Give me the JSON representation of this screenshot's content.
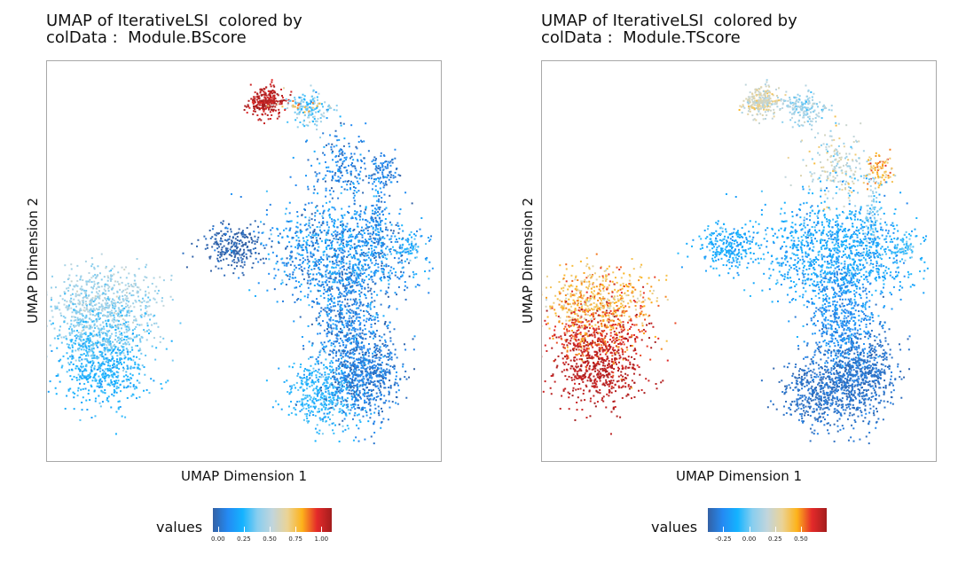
{
  "chart_data": [
    {
      "type": "scatter",
      "title_lines": [
        "UMAP of IterativeLSI  colored by",
        "colData :  Module.BScore"
      ],
      "xlabel": "UMAP Dimension 1",
      "ylabel": "UMAP Dimension 2",
      "legend_title": "values",
      "colorscale": [
        "#3361A5",
        "#248AF3",
        "#14B3FF",
        "#88CEEF",
        "#C1D5DC",
        "#EAD397",
        "#FDB31A",
        "#E42A2A",
        "#A31D1D"
      ],
      "value_range": [
        -0.05,
        1.1
      ],
      "tick_values": [
        0.0,
        0.25,
        0.5,
        0.75,
        1.0
      ],
      "tick_labels": [
        "0.00",
        "0.25",
        "0.50",
        "0.75",
        "1.00"
      ],
      "xlim": [
        -10,
        10
      ],
      "ylim": [
        -10,
        10
      ],
      "clusters": [
        {
          "name": "top-red",
          "cx": 1.2,
          "cy": 8.5,
          "sx": 0.45,
          "sy": 0.4,
          "n": 260,
          "value": 1.05,
          "jitter": 0.05
        },
        {
          "name": "top-right",
          "cx": 3.5,
          "cy": 8.1,
          "sx": 0.6,
          "sy": 0.55,
          "n": 150,
          "value": 0.36,
          "jitter": 0.1
        },
        {
          "name": "bridge",
          "cx": 2.6,
          "cy": 8.3,
          "sx": 0.7,
          "sy": 0.2,
          "n": 25,
          "value": 0.7,
          "jitter": 0.2
        },
        {
          "name": "stalk-upper",
          "cx": 5.4,
          "cy": 5.0,
          "sx": 0.9,
          "sy": 1.0,
          "n": 200,
          "value": 0.08,
          "jitter": 0.08
        },
        {
          "name": "stalk-knob",
          "cx": 7.6,
          "cy": 4.8,
          "sx": 0.4,
          "sy": 0.5,
          "n": 80,
          "value": 0.05,
          "jitter": 0.05
        },
        {
          "name": "stalk-mid",
          "cx": 7.2,
          "cy": 2.6,
          "sx": 0.25,
          "sy": 1.2,
          "n": 90,
          "value": 0.12,
          "jitter": 0.08
        },
        {
          "name": "left-dark",
          "cx": -0.5,
          "cy": 0.8,
          "sx": 0.8,
          "sy": 0.6,
          "n": 250,
          "value": -0.04,
          "jitter": 0.04
        },
        {
          "name": "central",
          "cx": 5.3,
          "cy": 0.4,
          "sx": 2.0,
          "sy": 1.3,
          "n": 1100,
          "value": 0.12,
          "jitter": 0.1
        },
        {
          "name": "right-tip",
          "cx": 9.0,
          "cy": 0.8,
          "sx": 0.35,
          "sy": 0.3,
          "n": 50,
          "value": 0.28,
          "jitter": 0.1
        },
        {
          "name": "lower-neck",
          "cx": 5.5,
          "cy": -3.2,
          "sx": 0.9,
          "sy": 1.6,
          "n": 550,
          "value": 0.08,
          "jitter": 0.08
        },
        {
          "name": "bottom-left-blob",
          "cx": 4.4,
          "cy": -7.0,
          "sx": 1.0,
          "sy": 0.9,
          "n": 450,
          "value": 0.25,
          "jitter": 0.06
        },
        {
          "name": "bottom-right-blob",
          "cx": 6.6,
          "cy": -6.2,
          "sx": 1.0,
          "sy": 1.1,
          "n": 650,
          "value": 0.05,
          "jitter": 0.06
        },
        {
          "name": "left-island-top",
          "cx": -7.6,
          "cy": -2.0,
          "sx": 1.4,
          "sy": 0.9,
          "n": 550,
          "value": 0.45,
          "jitter": 0.06
        },
        {
          "name": "left-island-mid",
          "cx": -7.6,
          "cy": -4.0,
          "sx": 1.4,
          "sy": 0.9,
          "n": 500,
          "value": 0.35,
          "jitter": 0.06
        },
        {
          "name": "left-island-bottom",
          "cx": -7.6,
          "cy": -6.0,
          "sx": 1.2,
          "sy": 0.9,
          "n": 450,
          "value": 0.24,
          "jitter": 0.05
        }
      ]
    },
    {
      "type": "scatter",
      "title_lines": [
        "UMAP of IterativeLSI  colored by",
        "colData :  Module.TScore"
      ],
      "xlabel": "UMAP Dimension 1",
      "ylabel": "UMAP Dimension 2",
      "legend_title": "values",
      "colorscale": [
        "#3361A5",
        "#248AF3",
        "#14B3FF",
        "#88CEEF",
        "#C1D5DC",
        "#EAD397",
        "#FDB31A",
        "#E42A2A",
        "#A31D1D"
      ],
      "value_range": [
        -0.4,
        0.75
      ],
      "tick_values": [
        -0.25,
        0.0,
        0.25,
        0.5
      ],
      "tick_labels": [
        "-0.25",
        "0.00",
        "0.25",
        "0.50"
      ],
      "xlim": [
        -10,
        10
      ],
      "ylim": [
        -10,
        10
      ],
      "clusters": [
        {
          "name": "top-left",
          "cx": 1.2,
          "cy": 8.5,
          "sx": 0.45,
          "sy": 0.4,
          "n": 260,
          "value": 0.24,
          "jitter": 0.08
        },
        {
          "name": "top-right",
          "cx": 3.5,
          "cy": 8.1,
          "sx": 0.6,
          "sy": 0.55,
          "n": 150,
          "value": 0.08,
          "jitter": 0.06
        },
        {
          "name": "bridge",
          "cx": 2.6,
          "cy": 8.3,
          "sx": 0.7,
          "sy": 0.2,
          "n": 25,
          "value": 0.1,
          "jitter": 0.08
        },
        {
          "name": "stalk-upper",
          "cx": 5.4,
          "cy": 5.0,
          "sx": 0.9,
          "sy": 1.0,
          "n": 200,
          "value": 0.18,
          "jitter": 0.12
        },
        {
          "name": "stalk-knob",
          "cx": 7.6,
          "cy": 4.8,
          "sx": 0.4,
          "sy": 0.5,
          "n": 80,
          "value": 0.42,
          "jitter": 0.1
        },
        {
          "name": "stalk-mid",
          "cx": 7.2,
          "cy": 2.6,
          "sx": 0.25,
          "sy": 1.2,
          "n": 90,
          "value": 0.06,
          "jitter": 0.06
        },
        {
          "name": "left-arm",
          "cx": -0.5,
          "cy": 0.8,
          "sx": 0.8,
          "sy": 0.6,
          "n": 250,
          "value": -0.14,
          "jitter": 0.05
        },
        {
          "name": "central",
          "cx": 5.3,
          "cy": 0.4,
          "sx": 2.0,
          "sy": 1.3,
          "n": 1100,
          "value": -0.15,
          "jitter": 0.06
        },
        {
          "name": "right-tip",
          "cx": 9.0,
          "cy": 0.8,
          "sx": 0.35,
          "sy": 0.3,
          "n": 50,
          "value": -0.02,
          "jitter": 0.06
        },
        {
          "name": "lower-neck",
          "cx": 5.5,
          "cy": -3.2,
          "sx": 0.9,
          "sy": 1.6,
          "n": 550,
          "value": -0.24,
          "jitter": 0.05
        },
        {
          "name": "bottom-left-blob",
          "cx": 4.4,
          "cy": -7.0,
          "sx": 1.0,
          "sy": 0.9,
          "n": 450,
          "value": -0.34,
          "jitter": 0.03
        },
        {
          "name": "bottom-right-blob",
          "cx": 6.6,
          "cy": -6.2,
          "sx": 1.0,
          "sy": 1.1,
          "n": 650,
          "value": -0.33,
          "jitter": 0.03
        },
        {
          "name": "left-island-top",
          "cx": -7.6,
          "cy": -2.0,
          "sx": 1.4,
          "sy": 0.9,
          "n": 550,
          "value": 0.42,
          "jitter": 0.1
        },
        {
          "name": "left-island-mid",
          "cx": -7.6,
          "cy": -4.0,
          "sx": 1.4,
          "sy": 0.9,
          "n": 500,
          "value": 0.6,
          "jitter": 0.08
        },
        {
          "name": "left-island-bottom",
          "cx": -7.6,
          "cy": -6.0,
          "sx": 1.2,
          "sy": 0.9,
          "n": 450,
          "value": 0.7,
          "jitter": 0.03
        }
      ]
    }
  ]
}
